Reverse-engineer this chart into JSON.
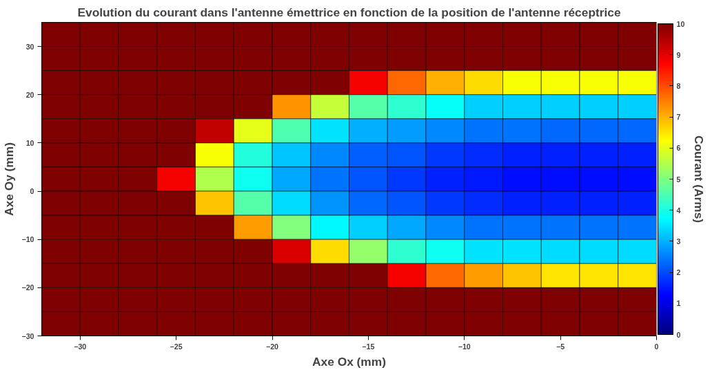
{
  "chart_data": {
    "type": "heatmap",
    "title": "Evolution du courant dans l'antenne émettrice en fonction de la position de l'antenne réceptrice",
    "xlabel": "Axe Ox (mm)",
    "ylabel": "Axe Oy (mm)",
    "clabel": "Courant (Arms)",
    "xlim": [
      -32,
      0
    ],
    "xticks": [
      -30,
      -25,
      -20,
      -15,
      -10,
      -5,
      0
    ],
    "ylim": [
      -30,
      35
    ],
    "yticks": [
      -30,
      -20,
      -10,
      0,
      10,
      20,
      30
    ],
    "clim": [
      0,
      10
    ],
    "cticks": [
      0,
      1,
      2,
      3,
      4,
      5,
      6,
      7,
      8,
      9,
      10
    ],
    "cells": [
      [
        10,
        10,
        10,
        10,
        10,
        10,
        10,
        10,
        10,
        10,
        10,
        10,
        10,
        10,
        10,
        10
      ],
      [
        10,
        10,
        10,
        10,
        10,
        10,
        10,
        10,
        10,
        10,
        10,
        10,
        10,
        10,
        10,
        10
      ],
      [
        10,
        10,
        10,
        10,
        10,
        10,
        10,
        10,
        8.8,
        7.7,
        7.0,
        6.6,
        6.2,
        6.2,
        6.2,
        6.2
      ],
      [
        10,
        10,
        10,
        10,
        10,
        10,
        7.3,
        5.7,
        4.6,
        4.2,
        3.8,
        3.3,
        3.3,
        3.3,
        3.3,
        3.3
      ],
      [
        10,
        10,
        10,
        10,
        9.3,
        6.0,
        4.5,
        3.5,
        3.0,
        2.8,
        2.6,
        2.4,
        2.4,
        2.3,
        2.3,
        2.3
      ],
      [
        10,
        10,
        10,
        10,
        6.2,
        4.1,
        3.2,
        2.6,
        2.2,
        2.1,
        1.8,
        1.7,
        1.6,
        1.6,
        1.6,
        1.6
      ],
      [
        10,
        10,
        10,
        8.8,
        5.5,
        3.9,
        2.9,
        2.4,
        2.1,
        1.8,
        1.6,
        1.5,
        1.4,
        1.4,
        1.4,
        1.4
      ],
      [
        10,
        10,
        10,
        10,
        6.8,
        4.6,
        3.4,
        2.7,
        2.3,
        2.1,
        1.8,
        1.7,
        1.6,
        1.6,
        1.6,
        1.6
      ],
      [
        10,
        10,
        10,
        10,
        10,
        7.2,
        5.0,
        3.7,
        3.3,
        2.9,
        2.6,
        2.4,
        2.4,
        2.4,
        2.4,
        2.4
      ],
      [
        10,
        10,
        10,
        10,
        10,
        10,
        9.1,
        6.6,
        5.2,
        4.2,
        3.9,
        3.5,
        3.5,
        3.4,
        3.4,
        3.4
      ],
      [
        10,
        10,
        10,
        10,
        10,
        10,
        10,
        10,
        10,
        8.8,
        7.7,
        7.2,
        6.8,
        6.5,
        6.5,
        6.5
      ],
      [
        10,
        10,
        10,
        10,
        10,
        10,
        10,
        10,
        10,
        10,
        10,
        10,
        10,
        10,
        10,
        10
      ],
      [
        10,
        10,
        10,
        10,
        10,
        10,
        10,
        10,
        10,
        10,
        10,
        10,
        10,
        10,
        10,
        10
      ]
    ]
  }
}
